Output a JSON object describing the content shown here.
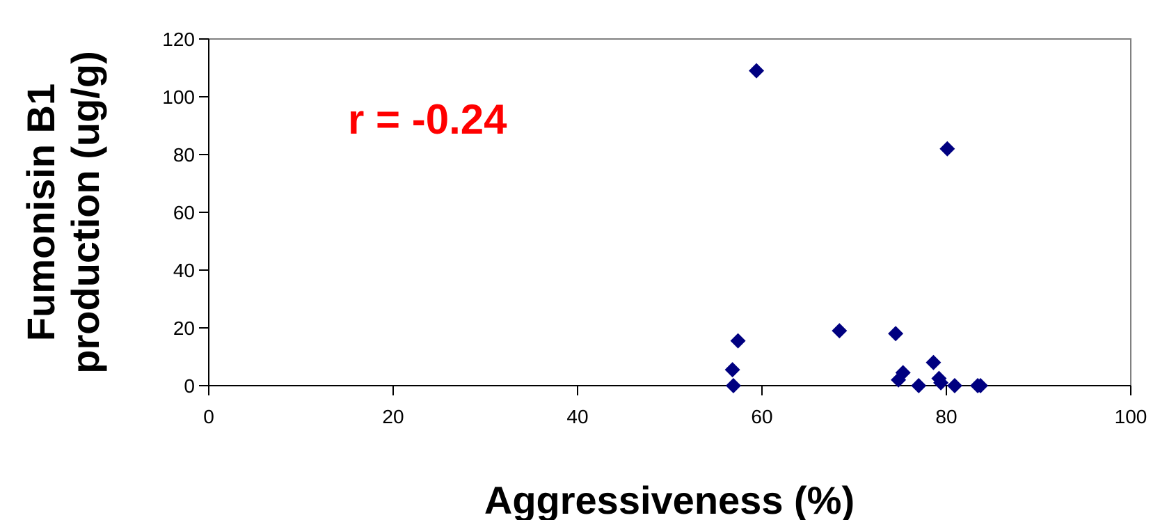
{
  "chart_data": {
    "type": "scatter",
    "xlabel": "Aggressiveness (%)",
    "ylabel_lines": [
      "Fumonisin B1",
      "production (ug/g)"
    ],
    "xlim": [
      0,
      100
    ],
    "ylim": [
      0,
      120
    ],
    "x_ticks": [
      0,
      20,
      40,
      60,
      80,
      100
    ],
    "y_ticks": [
      0,
      20,
      40,
      60,
      80,
      100,
      120
    ],
    "grid": false,
    "marker": "diamond",
    "marker_color": "#000080",
    "annotation": {
      "text": "r = -0.24",
      "color": "#ff0000"
    },
    "points": [
      {
        "x": 59.4,
        "y": 109
      },
      {
        "x": 80.1,
        "y": 82
      },
      {
        "x": 68.4,
        "y": 19
      },
      {
        "x": 74.5,
        "y": 18
      },
      {
        "x": 57.4,
        "y": 15.5
      },
      {
        "x": 78.6,
        "y": 8
      },
      {
        "x": 56.8,
        "y": 5.5
      },
      {
        "x": 75.3,
        "y": 4.5
      },
      {
        "x": 79.2,
        "y": 2.5
      },
      {
        "x": 74.8,
        "y": 2
      },
      {
        "x": 79.4,
        "y": 1
      },
      {
        "x": 56.9,
        "y": 0
      },
      {
        "x": 77.0,
        "y": 0
      },
      {
        "x": 80.9,
        "y": 0
      },
      {
        "x": 83.4,
        "y": 0
      },
      {
        "x": 83.7,
        "y": 0
      }
    ]
  }
}
